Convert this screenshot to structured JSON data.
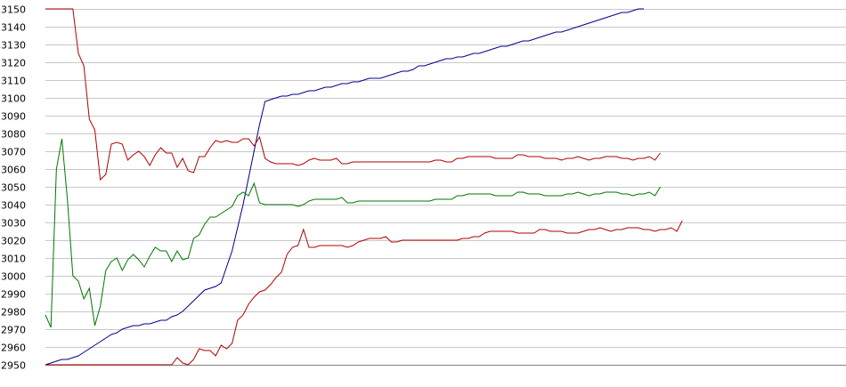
{
  "chart_data": {
    "type": "line",
    "title": "",
    "xlabel": "",
    "ylabel": "",
    "ylim": [
      2950,
      3150
    ],
    "yticks": [
      2950,
      2960,
      2970,
      2980,
      2990,
      3000,
      3010,
      3020,
      3030,
      3040,
      3050,
      3060,
      3070,
      3080,
      3090,
      3100,
      3110,
      3120,
      3130,
      3140,
      3150
    ],
    "x_count": 146,
    "grid": "horizontal",
    "legend": "none",
    "series": [
      {
        "color": "#00008b",
        "values": [
          2950,
          2951,
          2952,
          2953,
          2953,
          2954,
          2955,
          2957,
          2959,
          2961,
          2963,
          2965,
          2967,
          2968,
          2970,
          2971,
          2972,
          2972,
          2973,
          2973,
          2974,
          2975,
          2975,
          2977,
          2978,
          2980,
          2983,
          2986,
          2989,
          2992,
          2993,
          2994,
          2996,
          3005,
          3014,
          3027,
          3040,
          3055,
          3070,
          3085,
          3098,
          3099,
          3100,
          3101,
          3101,
          3102,
          3102,
          3103,
          3104,
          3104,
          3105,
          3106,
          3106,
          3107,
          3108,
          3108,
          3109,
          3109,
          3110,
          3111,
          3111,
          3111,
          3112,
          3113,
          3114,
          3115,
          3115,
          3116,
          3118,
          3118,
          3119,
          3120,
          3121,
          3122,
          3122,
          3123,
          3123,
          3124,
          3125,
          3125,
          3126,
          3127,
          3128,
          3129,
          3129,
          3130,
          3131,
          3132,
          3132,
          3133,
          3134,
          3135,
          3136,
          3137,
          3137,
          3138,
          3139,
          3140,
          3141,
          3142,
          3143,
          3144,
          3145,
          3146,
          3147,
          3148,
          3148,
          3149,
          3150,
          3150
        ]
      },
      {
        "color": "#b00000",
        "values": [
          3150,
          3150,
          3150,
          3150,
          3150,
          3150,
          3125,
          3118,
          3088,
          3082,
          3054,
          3057,
          3074,
          3075,
          3074,
          3065,
          3068,
          3070,
          3067,
          3062,
          3068,
          3072,
          3069,
          3069,
          3061,
          3066,
          3059,
          3058,
          3067,
          3067,
          3072,
          3076,
          3075,
          3076,
          3075,
          3075,
          3077,
          3077,
          3073,
          3078,
          3066,
          3064,
          3063,
          3063,
          3063,
          3063,
          3062,
          3063,
          3065,
          3066,
          3065,
          3065,
          3065,
          3066,
          3063,
          3063,
          3064,
          3064,
          3064,
          3064,
          3064,
          3064,
          3064,
          3064,
          3064,
          3064,
          3064,
          3064,
          3064,
          3064,
          3064,
          3065,
          3065,
          3064,
          3064,
          3066,
          3066,
          3067,
          3067,
          3067,
          3067,
          3067,
          3066,
          3066,
          3066,
          3066,
          3068,
          3068,
          3067,
          3067,
          3067,
          3066,
          3066,
          3066,
          3065,
          3066,
          3066,
          3067,
          3066,
          3065,
          3066,
          3066,
          3067,
          3067,
          3067,
          3066,
          3066,
          3065,
          3066,
          3066,
          3067,
          3065,
          3069
        ]
      },
      {
        "color": "#007800",
        "values": [
          2978,
          2971,
          3060,
          3077,
          3043,
          3000,
          2997,
          2987,
          2993,
          2972,
          2983,
          3003,
          3008,
          3010,
          3003,
          3009,
          3012,
          3009,
          3005,
          3011,
          3016,
          3014,
          3014,
          3008,
          3014,
          3009,
          3010,
          3021,
          3023,
          3029,
          3033,
          3033,
          3035,
          3037,
          3039,
          3045,
          3047,
          3045,
          3052,
          3041,
          3040,
          3040,
          3040,
          3040,
          3040,
          3040,
          3039,
          3040,
          3042,
          3043,
          3043,
          3043,
          3043,
          3043,
          3044,
          3041,
          3041,
          3042,
          3042,
          3042,
          3042,
          3042,
          3042,
          3042,
          3042,
          3042,
          3042,
          3042,
          3042,
          3042,
          3042,
          3043,
          3043,
          3043,
          3043,
          3045,
          3045,
          3046,
          3046,
          3046,
          3046,
          3046,
          3045,
          3045,
          3045,
          3045,
          3047,
          3047,
          3046,
          3046,
          3046,
          3045,
          3045,
          3045,
          3045,
          3046,
          3046,
          3047,
          3046,
          3045,
          3046,
          3046,
          3047,
          3047,
          3047,
          3046,
          3046,
          3045,
          3046,
          3046,
          3047,
          3045,
          3050
        ]
      },
      {
        "color": "#b00000",
        "values": [
          2950,
          2950,
          2950,
          2950,
          2950,
          2950,
          2950,
          2950,
          2950,
          2950,
          2950,
          2950,
          2950,
          2950,
          2950,
          2950,
          2950,
          2950,
          2950,
          2950,
          2950,
          2950,
          2950,
          2950,
          2954,
          2951,
          2950,
          2953,
          2959,
          2958,
          2958,
          2955,
          2961,
          2959,
          2962,
          2975,
          2978,
          2984,
          2988,
          2991,
          2992,
          2995,
          2999,
          3002,
          3012,
          3016,
          3017,
          3026,
          3016,
          3016,
          3017,
          3017,
          3017,
          3017,
          3017,
          3016,
          3017,
          3019,
          3020,
          3021,
          3021,
          3021,
          3022,
          3019,
          3019,
          3020,
          3020,
          3020,
          3020,
          3020,
          3020,
          3020,
          3020,
          3020,
          3020,
          3020,
          3021,
          3021,
          3022,
          3022,
          3024,
          3025,
          3025,
          3025,
          3025,
          3025,
          3024,
          3024,
          3024,
          3024,
          3026,
          3026,
          3025,
          3025,
          3025,
          3024,
          3024,
          3024,
          3025,
          3026,
          3026,
          3027,
          3026,
          3025,
          3026,
          3026,
          3027,
          3027,
          3027,
          3026,
          3026,
          3025,
          3026,
          3026,
          3027,
          3025,
          3031
        ]
      }
    ]
  }
}
